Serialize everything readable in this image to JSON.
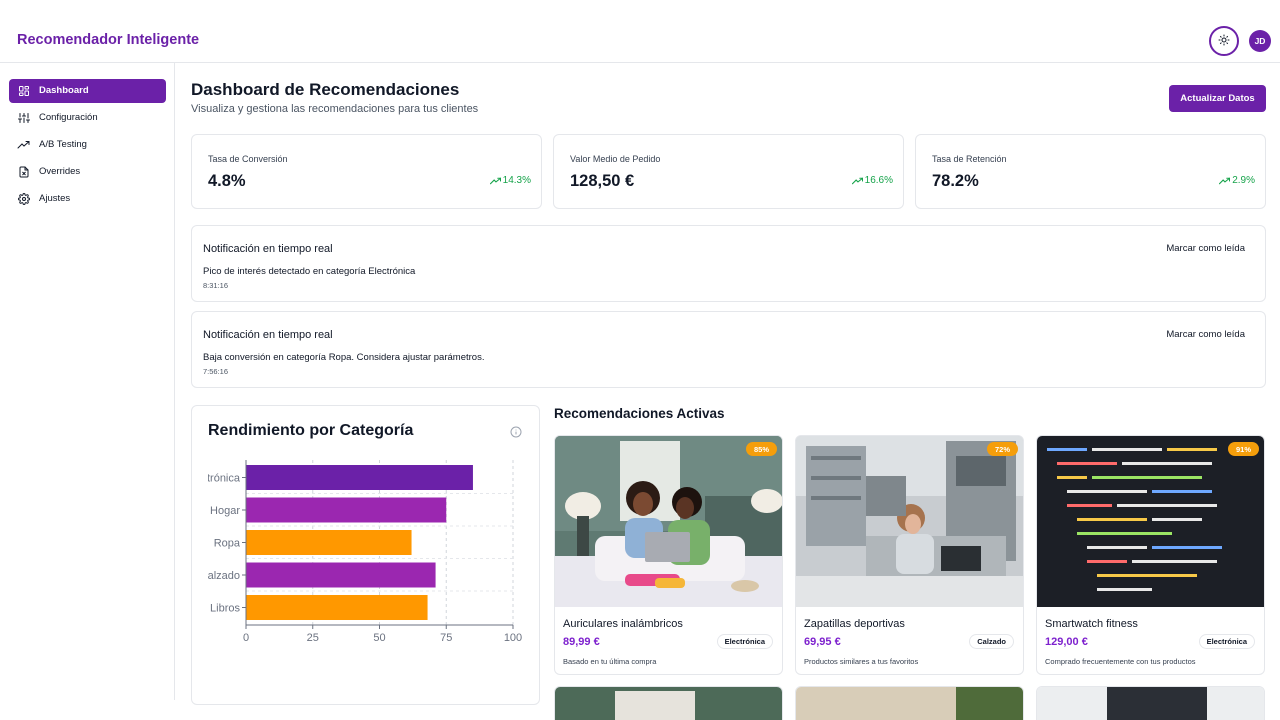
{
  "header": {
    "title": "Recomendador Inteligente",
    "theme_icon": "sun-icon",
    "avatar_initials": "JD"
  },
  "sidebar": {
    "items": [
      {
        "label": "Dashboard",
        "icon": "grid-icon",
        "active": true
      },
      {
        "label": "Configuración",
        "icon": "sliders-icon",
        "active": false
      },
      {
        "label": "A/B Testing",
        "icon": "trend-icon",
        "active": false
      },
      {
        "label": "Overrides",
        "icon": "file-x-icon",
        "active": false
      },
      {
        "label": "Ajustes",
        "icon": "gear-icon",
        "active": false
      }
    ]
  },
  "main": {
    "title": "Dashboard de Recomendaciones",
    "subtitle": "Visualiza y gestiona las recomendaciones para tus clientes",
    "refresh_label": "Actualizar Datos"
  },
  "kpis": [
    {
      "label": "Tasa de Conversión",
      "value": "4.8%",
      "trend": "14.3%"
    },
    {
      "label": "Valor Medio de Pedido",
      "value": "128,50 €",
      "trend": "16.6%"
    },
    {
      "label": "Tasa de Retención",
      "value": "78.2%",
      "trend": "2.9%"
    }
  ],
  "notifications": [
    {
      "title": "Notificación en tiempo real",
      "message": "Pico de interés detectado en categoría Electrónica",
      "time": "8:31:16",
      "action": "Marcar como leída"
    },
    {
      "title": "Notificación en tiempo real",
      "message": "Baja conversión en categoría Ropa. Considera ajustar parámetros.",
      "time": "7:56:16",
      "action": "Marcar como leída"
    }
  ],
  "performance": {
    "title": "Rendimiento por Categoría"
  },
  "chart_data": {
    "type": "bar",
    "orientation": "horizontal",
    "title": "Rendimiento por Categoría",
    "categories": [
      "Electrónica",
      "Hogar",
      "Ropa",
      "Calzado",
      "Libros"
    ],
    "values": [
      85,
      75,
      62,
      71,
      68
    ],
    "colors": [
      "#6b21a8",
      "#9b27b0",
      "#ff9800",
      "#9b27b0",
      "#ff9800"
    ],
    "xlim": [
      0,
      100
    ],
    "xticks": [
      "0",
      "25",
      "50",
      "75",
      "100"
    ],
    "grid": true
  },
  "recommendations": {
    "title": "Recomendaciones Activas",
    "items": [
      {
        "name": "Auriculares inalámbricos",
        "price": "89,99 €",
        "category": "Electrónica",
        "reason": "Basado en tu última compra",
        "match": "85%"
      },
      {
        "name": "Zapatillas deportivas",
        "price": "69,95 €",
        "category": "Calzado",
        "reason": "Productos similares a tus favoritos",
        "match": "72%"
      },
      {
        "name": "Smartwatch fitness",
        "price": "129,00 €",
        "category": "Electrónica",
        "reason": "Comprado frecuentemente con tus productos",
        "match": "91%"
      }
    ]
  },
  "colors": {
    "primary": "#6b21a8",
    "accent_orange": "#f59e0b",
    "trend_green": "#16a34a"
  }
}
